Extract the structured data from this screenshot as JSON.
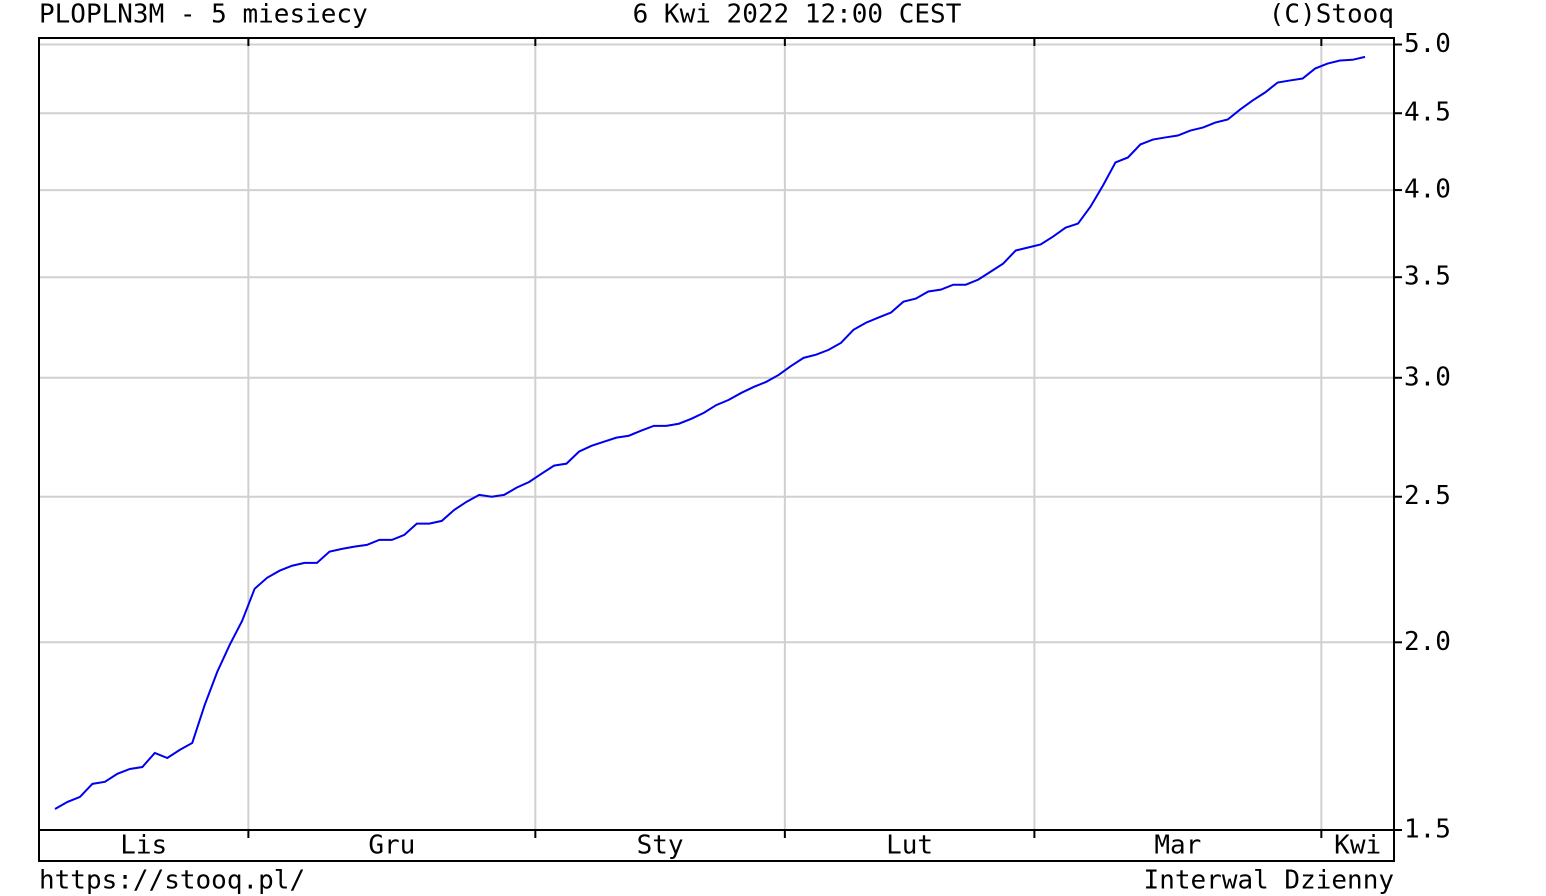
{
  "chart_data": {
    "type": "line",
    "title": "PLOPLN3M - 5 miesiecy",
    "date": "6 Kwi 2022 12:00 CEST",
    "source": "(C)Stooq",
    "url": "https://stooq.pl/",
    "interval": "Interwal Dzienny",
    "log_scale": true,
    "grid": true,
    "color": "#0000ee",
    "categories": [
      "Lis",
      "Gru",
      "Sty",
      "Lut",
      "Mar",
      "Kwi"
    ],
    "values": [
      [
        1.549,
        1.566,
        1.578,
        1.61,
        1.615,
        1.635,
        1.647,
        1.652,
        1.688,
        1.675,
        1.696,
        1.714,
        1.817,
        1.911,
        1.992,
        2.067
      ],
      [
        2.171,
        2.208,
        2.232,
        2.249,
        2.259,
        2.259,
        2.298,
        2.308,
        2.316,
        2.322,
        2.34,
        2.34,
        2.358,
        2.399,
        2.399,
        2.409,
        2.45,
        2.481,
        2.507,
        2.5,
        2.507,
        2.535,
        2.557
      ],
      [
        2.59,
        2.622,
        2.63,
        2.679,
        2.703,
        2.72,
        2.737,
        2.745,
        2.767,
        2.787,
        2.787,
        2.796,
        2.817,
        2.843,
        2.877,
        2.9,
        2.931,
        2.958,
        2.981,
        3.013
      ],
      [
        3.055,
        3.093,
        3.108,
        3.131,
        3.165,
        3.229,
        3.264,
        3.29,
        3.315,
        3.371,
        3.387,
        3.424,
        3.434,
        3.46,
        3.46,
        3.487,
        3.53,
        3.574,
        3.646,
        3.663
      ],
      [
        3.68,
        3.725,
        3.776,
        3.8,
        3.9,
        4.028,
        4.173,
        4.205,
        4.29,
        4.322,
        4.336,
        4.349,
        4.382,
        4.402,
        4.436,
        4.457,
        4.526,
        4.589,
        4.646,
        4.717,
        4.732,
        4.746,
        4.819
      ],
      [
        4.856,
        4.879,
        4.884,
        4.906
      ]
    ],
    "ylim": [
      1.5,
      5.05
    ],
    "yticks": [
      1.5,
      {
        "value": 2,
        "label": "2.0"
      },
      2.5,
      {
        "value": 3,
        "label": "3.0"
      },
      3.5,
      {
        "value": 4,
        "label": "4.0"
      },
      4.5,
      {
        "value": 5,
        "label": "5.0"
      }
    ]
  }
}
